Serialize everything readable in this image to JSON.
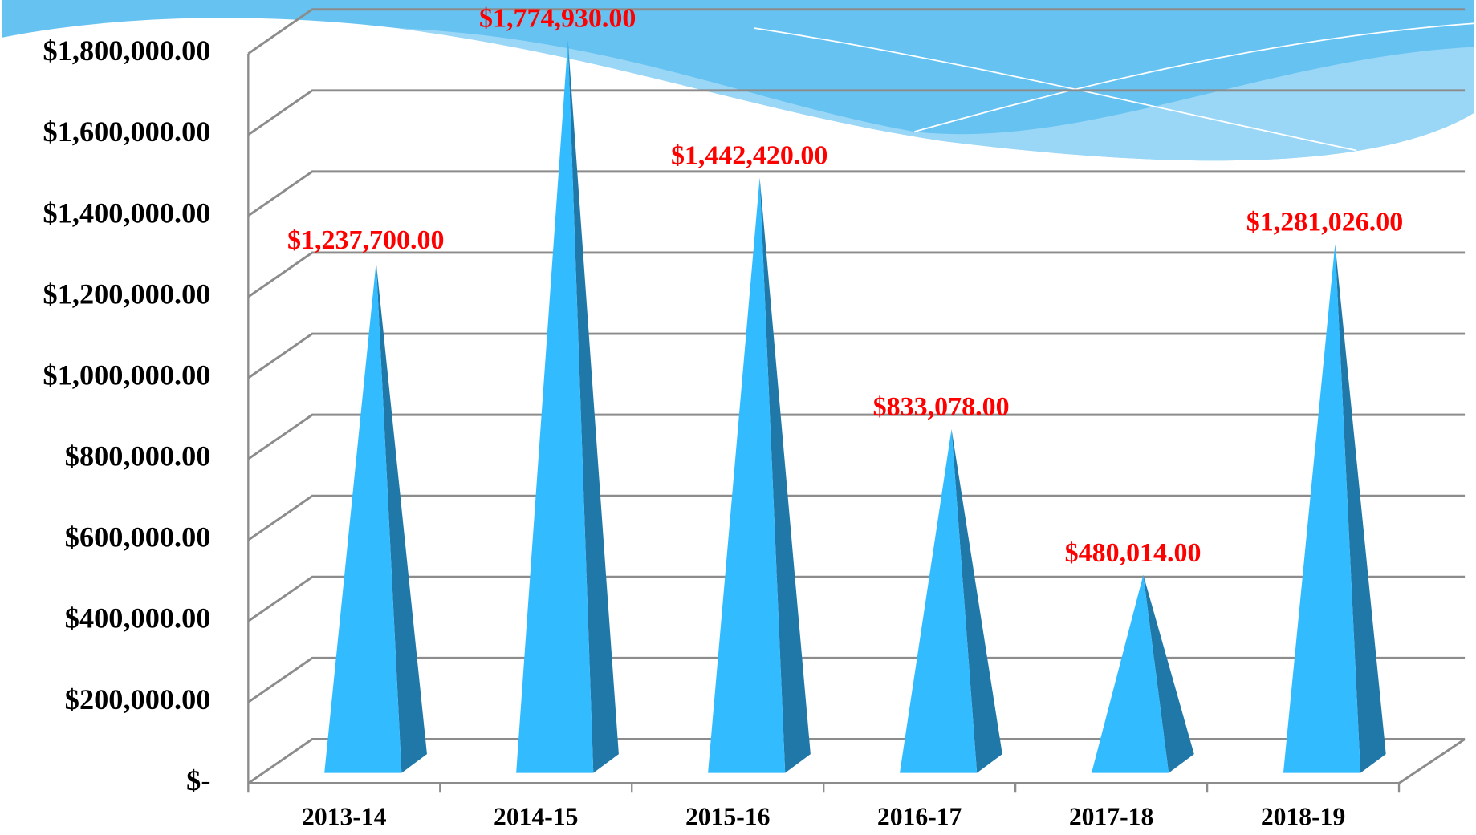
{
  "chart_data": {
    "type": "pyramid-bar",
    "categories": [
      "2013-14",
      "2014-15",
      "2015-16",
      "2016-17",
      "2017-18",
      "2018-19"
    ],
    "values": [
      1237700,
      1774930,
      1442420,
      833078,
      480014,
      1281026
    ],
    "value_labels": [
      "$1,237,700.00",
      "$1,774,930.00",
      "$1,442,420.00",
      "$833,078.00",
      "$480,014.00",
      "$1,281,026.00"
    ],
    "color": "#33bbff",
    "label_color": "#ff0000",
    "ylim": [
      0,
      1800000
    ],
    "yticks": [
      {
        "value": 0,
        "label": "$-"
      },
      {
        "value": 200000,
        "label": "$200,000.00"
      },
      {
        "value": 400000,
        "label": "$400,000.00"
      },
      {
        "value": 600000,
        "label": "$600,000.00"
      },
      {
        "value": 800000,
        "label": "$800,000.00"
      },
      {
        "value": 1000000,
        "label": "$1,000,000.00"
      },
      {
        "value": 1200000,
        "label": "$1,200,000.00"
      },
      {
        "value": 1400000,
        "label": "$1,400,000.00"
      },
      {
        "value": 1600000,
        "label": "$1,600,000.00"
      },
      {
        "value": 1800000,
        "label": "$1,800,000.00"
      }
    ],
    "grid": true
  }
}
